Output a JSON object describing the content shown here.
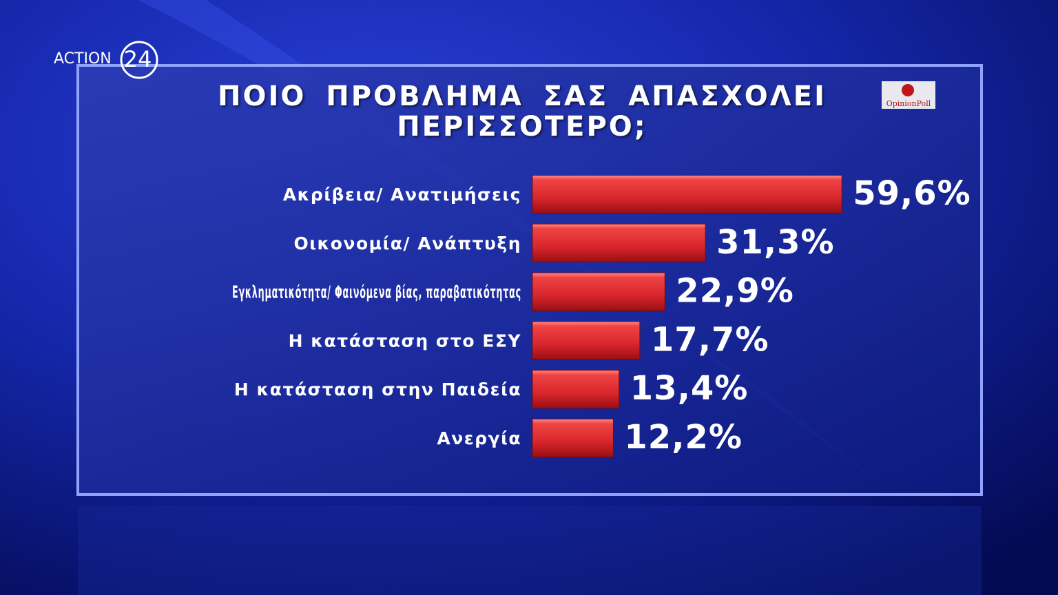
{
  "chart_data": {
    "type": "bar",
    "orientation": "horizontal",
    "title": "ΠΟΙΟ ΠΡΟΒΛΗΜΑ ΣΑΣ ΑΠΑΣΧΟΛΕΙ ΠΕΡΙΣΣΟΤΕΡΟ;",
    "categories": [
      "Ακρίβεια/ Ανατιμήσεις",
      "Οικονομία/ Ανάπτυξη",
      "Εγκληματικότητα/ Φαινόμενα βίας, παραβατικότητας",
      "Η κατάσταση στο ΕΣΥ",
      "Η κατάσταση στην Παιδεία",
      "Ανεργία"
    ],
    "values": [
      59.6,
      31.3,
      22.9,
      17.7,
      13.4,
      12.2
    ],
    "value_labels": [
      "59,6%",
      "31,3%",
      "22,9%",
      "17,7%",
      "13,4%",
      "12,2%"
    ],
    "color": "#d8262c"
  },
  "logo": {
    "text": "ACTION",
    "number": "24"
  },
  "source": "OpinionPoll"
}
